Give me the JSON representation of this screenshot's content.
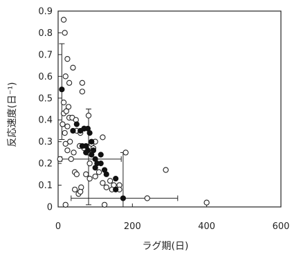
{
  "chart_data": {
    "type": "scatter",
    "xlabel": "ラグ期(日)",
    "ylabel": "反応速度(日⁻¹)",
    "xlim": [
      0,
      600
    ],
    "ylim": [
      0,
      0.9
    ],
    "xticks": [
      "0",
      "200",
      "400",
      "600"
    ],
    "yticks": [
      "0",
      "0.1",
      "0.2",
      "0.3",
      "0.4",
      "0.5",
      "0.6",
      "0.7",
      "0.8",
      "0.9"
    ],
    "grid": false,
    "series": [
      {
        "marker": "open-circle",
        "color": "#222222",
        "points": [
          [
            15,
            0.86
          ],
          [
            18,
            0.8
          ],
          [
            25,
            0.68
          ],
          [
            40,
            0.64
          ],
          [
            20,
            0.6
          ],
          [
            30,
            0.57
          ],
          [
            65,
            0.57
          ],
          [
            65,
            0.53
          ],
          [
            15,
            0.48
          ],
          [
            28,
            0.46
          ],
          [
            15,
            0.43
          ],
          [
            22,
            0.44
          ],
          [
            30,
            0.41
          ],
          [
            38,
            0.41
          ],
          [
            48,
            0.4
          ],
          [
            82,
            0.42
          ],
          [
            12,
            0.38
          ],
          [
            25,
            0.37
          ],
          [
            18,
            0.34
          ],
          [
            50,
            0.35
          ],
          [
            60,
            0.34
          ],
          [
            70,
            0.36
          ],
          [
            100,
            0.3
          ],
          [
            90,
            0.29
          ],
          [
            120,
            0.32
          ],
          [
            20,
            0.29
          ],
          [
            32,
            0.3
          ],
          [
            58,
            0.28
          ],
          [
            70,
            0.27
          ],
          [
            95,
            0.27
          ],
          [
            25,
            0.26
          ],
          [
            42,
            0.25
          ],
          [
            80,
            0.25
          ],
          [
            35,
            0.22
          ],
          [
            5,
            0.22
          ],
          [
            45,
            0.16
          ],
          [
            50,
            0.15
          ],
          [
            85,
            0.2
          ],
          [
            75,
            0.15
          ],
          [
            110,
            0.16
          ],
          [
            85,
            0.13
          ],
          [
            100,
            0.14
          ],
          [
            120,
            0.11
          ],
          [
            140,
            0.12
          ],
          [
            150,
            0.1
          ],
          [
            165,
            0.1
          ],
          [
            130,
            0.09
          ],
          [
            145,
            0.08
          ],
          [
            165,
            0.08
          ],
          [
            45,
            0.08
          ],
          [
            55,
            0.06
          ],
          [
            62,
            0.09
          ],
          [
            60,
            0.07
          ],
          [
            125,
            0.01
          ],
          [
            20,
            0.01
          ],
          [
            182,
            0.25
          ],
          [
            240,
            0.04
          ],
          [
            290,
            0.17
          ],
          [
            400,
            0.02
          ]
        ]
      },
      {
        "marker": "filled-circle",
        "color": "#111111",
        "points": [
          [
            10,
            0.54
          ],
          [
            50,
            0.38
          ],
          [
            40,
            0.35
          ],
          [
            60,
            0.35
          ],
          [
            70,
            0.36
          ],
          [
            80,
            0.36
          ],
          [
            85,
            0.34
          ],
          [
            90,
            0.3
          ],
          [
            75,
            0.28
          ],
          [
            65,
            0.28
          ],
          [
            80,
            0.26
          ],
          [
            95,
            0.26
          ],
          [
            75,
            0.25
          ],
          [
            90,
            0.24
          ],
          [
            115,
            0.24
          ],
          [
            100,
            0.22
          ],
          [
            105,
            0.2
          ],
          [
            115,
            0.2
          ],
          [
            100,
            0.18
          ],
          [
            125,
            0.17
          ],
          [
            130,
            0.15
          ],
          [
            155,
            0.13
          ],
          [
            155,
            0.08
          ],
          [
            175,
            0.04
          ]
        ]
      }
    ],
    "error_bars": [
      {
        "x": 10,
        "y": 0.54,
        "y_low": 0.31,
        "y_high": 0.75
      },
      {
        "x": 82,
        "y": 0.22,
        "x_low": 10,
        "x_high": 170,
        "y_low": 0.01,
        "y_high": 0.45
      },
      {
        "x": 175,
        "y": 0.04,
        "x_low": 35,
        "x_high": 322,
        "y_low": 0.0,
        "y_high": 0.25
      }
    ]
  }
}
